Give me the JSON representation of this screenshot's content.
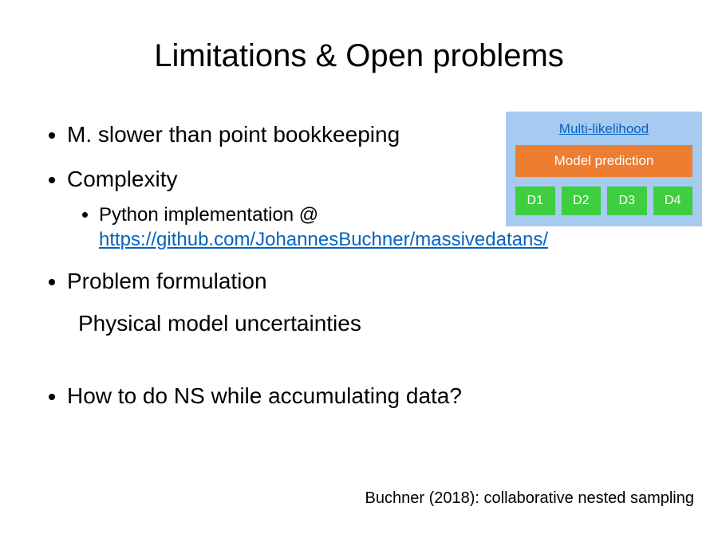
{
  "title": "Limitations & Open problems",
  "bullets": {
    "b1": "M. slower than point bookkeeping",
    "b2": "Complexity",
    "b2_sub_prefix": "Python implementation @ ",
    "b2_link": "https://github.com/JohannesBuchner/massivedatans/",
    "b3": "Problem formulation",
    "b3_sub": "Physical model uncertainties",
    "b4": "How to do NS while accumulating data?"
  },
  "footer": "Buchner (2018): collaborative nested sampling",
  "diagram": {
    "title": "Multi-likelihood",
    "model_label": "Model prediction",
    "cells": {
      "d1": "D1",
      "d2": "D2",
      "d3": "D3",
      "d4": "D4"
    },
    "colors": {
      "panel_bg": "#a6caf0",
      "title_color": "#0563c1",
      "model_bg": "#ed7d31",
      "cell_bg": "#3fce3f"
    }
  },
  "styling": {
    "title_fontsize": 40,
    "body_fontsize": 28,
    "sub_fontsize": 24,
    "footer_fontsize": 20,
    "link_color": "#0563c1",
    "text_color": "#000000",
    "background": "#ffffff"
  }
}
